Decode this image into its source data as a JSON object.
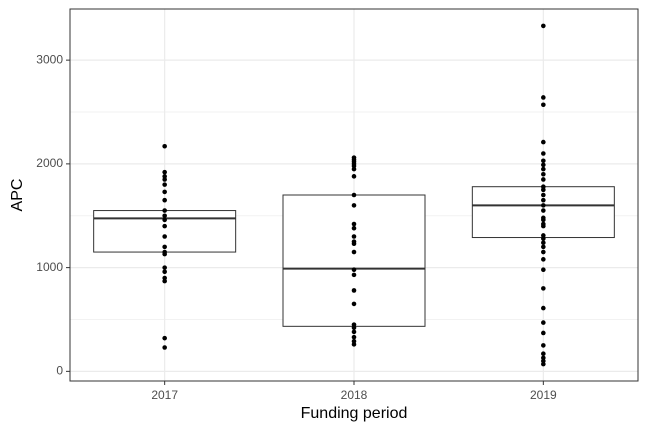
{
  "chart_data": {
    "type": "box",
    "x_label": "Funding period",
    "y_label": "APC",
    "categories": [
      "2017",
      "2018",
      "2019"
    ],
    "boxes": [
      {
        "q1": 1150,
        "median": 1475,
        "q3": 1550
      },
      {
        "q1": 434,
        "median": 990,
        "q3": 1700
      },
      {
        "q1": 1290,
        "median": 1600,
        "q3": 1780
      }
    ],
    "points": [
      [
        2170,
        1920,
        1880,
        1850,
        1800,
        1730,
        1650,
        1550,
        1500,
        1460,
        1400,
        1300,
        1200,
        1150,
        1130,
        1000,
        960,
        900,
        870,
        320,
        230
      ],
      [
        2060,
        2040,
        2020,
        2000,
        1980,
        1950,
        1880,
        1700,
        1600,
        1420,
        1380,
        1300,
        1250,
        1230,
        1150,
        980,
        930,
        780,
        650,
        450,
        420,
        380,
        330,
        290,
        260
      ],
      [
        3330,
        2640,
        2570,
        2210,
        2100,
        2030,
        1990,
        1950,
        1900,
        1850,
        1780,
        1750,
        1700,
        1650,
        1600,
        1550,
        1480,
        1460,
        1420,
        1400,
        1310,
        1280,
        1240,
        1200,
        1150,
        1080,
        980,
        800,
        610,
        470,
        370,
        250,
        170,
        130,
        100,
        70
      ]
    ],
    "ylim": [
      -93,
      3493
    ],
    "yticks": [
      0,
      1000,
      2000,
      3000
    ],
    "minor_yticks": [
      500,
      1500,
      2500
    ],
    "grid": true,
    "box_fill": "#ffffff",
    "box_color": "#333333",
    "point_color": "#000000"
  }
}
